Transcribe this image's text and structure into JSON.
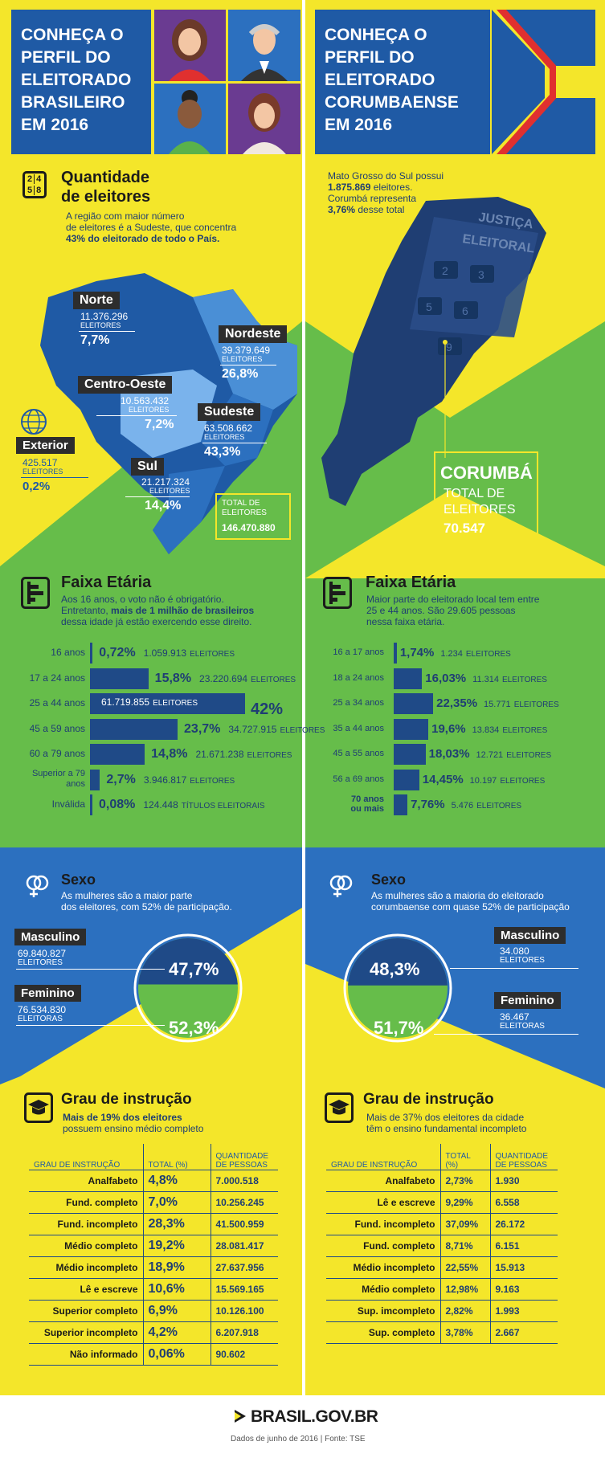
{
  "colors": {
    "yellow": "#f4e62a",
    "green": "#66bd4a",
    "blue": "#2c70bf",
    "navy": "#1f3e73",
    "dark": "#2d2d2d"
  },
  "left": {
    "title": "CONHEÇA O PERFIL DO ELEITORADO BRASILEIRO EM 2016",
    "quantity": {
      "title1": "Quantidade",
      "title2": "de eleitores",
      "desc1": "A região com maior número",
      "desc2": "de eleitores é a Sudeste, que concentra",
      "desc3": "43% do eleitorado de todo o País.",
      "regions": [
        {
          "name": "Norte",
          "voters": "11.376.296",
          "unit": "ELEITORES",
          "pct": "7,7%"
        },
        {
          "name": "Nordeste",
          "voters": "39.379.649",
          "unit": "ELEITORES",
          "pct": "26,8%"
        },
        {
          "name": "Centro-Oeste",
          "voters": "10.563.432",
          "unit": "ELEITORES",
          "pct": "7,2%"
        },
        {
          "name": "Sudeste",
          "voters": "63.508.662",
          "unit": "ELEITORES",
          "pct": "43,3%"
        },
        {
          "name": "Sul",
          "voters": "21.217.324",
          "unit": "ELEITORES",
          "pct": "14,4%"
        },
        {
          "name": "Exterior",
          "voters": "425.517",
          "unit": "ELEITORES",
          "pct": "0,2%"
        }
      ],
      "total_label1": "TOTAL DE",
      "total_label2": "ELEITORES",
      "total": "146.470.880"
    },
    "age": {
      "title": "Faixa Etária",
      "desc1": "Aos 16 anos, o voto não é obrigatório.",
      "desc2a": "Entretanto, ",
      "desc2b": "mais de 1 milhão de brasileiros",
      "desc3": "dessa idade já estão exercendo esse direito.",
      "big_pct": "42%"
    },
    "sex": {
      "title": "Sexo",
      "desc1": "As mulheres são a maior parte",
      "desc2": "dos eleitores, com 52% de participação.",
      "male_label": "Masculino",
      "male_count": "69.840.827",
      "male_unit": "ELEITORES",
      "male_pct": "47,7%",
      "female_label": "Feminino",
      "female_count": "76.534.830",
      "female_unit": "ELEITORAS",
      "female_pct": "52,3%"
    },
    "edu": {
      "title": "Grau de instrução",
      "desc1": "Mais de 19% dos eleitores",
      "desc2": "possuem ensino médio completo",
      "h1": "GRAU DE INSTRUÇÃO",
      "h2": "TOTAL (%)",
      "h3a": "QUANTIDADE",
      "h3b": "DE PESSOAS",
      "rows": [
        {
          "label": "Analfabeto",
          "pct": "4,8%",
          "qty": "7.000.518"
        },
        {
          "label": "Fund. completo",
          "pct": "7,0%",
          "qty": "10.256.245"
        },
        {
          "label": "Fund. incompleto",
          "pct": "28,3%",
          "qty": "41.500.959"
        },
        {
          "label": "Médio completo",
          "pct": "19,2%",
          "qty": "28.081.417"
        },
        {
          "label": "Médio incompleto",
          "pct": "18,9%",
          "qty": "27.637.956"
        },
        {
          "label": "Lê e escreve",
          "pct": "10,6%",
          "qty": "15.569.165"
        },
        {
          "label": "Superior completo",
          "pct": "6,9%",
          "qty": "10.126.100"
        },
        {
          "label": "Superior incompleto",
          "pct": "4,2%",
          "qty": "6.207.918"
        },
        {
          "label": "Não informado",
          "pct": "0,06%",
          "qty": "90.602"
        }
      ]
    }
  },
  "right": {
    "title": "CONHEÇA O PERFIL DO ELEITORADO CORUMBAENSE EM 2016",
    "intro1": "Mato Grosso do Sul possui",
    "intro2": "1.875.869",
    "intro2b": " eleitores.",
    "intro3": "Corumbá representa",
    "intro4": "3,76%",
    "intro4b": " desse total",
    "machine1": "JUSTIÇA",
    "machine2": "ELEITORAL",
    "city": "CORUMBÁ",
    "total1": "TOTAL DE",
    "total2": "ELEITORES",
    "total": "70.547",
    "age": {
      "title": "Faixa Etária",
      "desc1": "Maior parte do eleitorado local tem entre",
      "desc2": "25 e 44 anos. São 29.605 pessoas",
      "desc3": "nessa faixa etária."
    },
    "sex": {
      "title": "Sexo",
      "desc1": "As mulheres são a maioria do eleitorado",
      "desc2": "corumbaense com quase 52% de participação",
      "male_label": "Masculino",
      "male_count": "34.080",
      "male_unit": "ELEITORES",
      "male_pct": "48,3%",
      "female_label": "Feminino",
      "female_count": "36.467",
      "female_unit": "ELEITORAS",
      "female_pct": "51,7%"
    },
    "edu": {
      "title": "Grau de instrução",
      "desc1": "Mais de 37% dos eleitores da cidade",
      "desc2": "têm o ensino fundamental incompleto",
      "h1": "GRAU DE INSTRUÇÃO",
      "h2": "TOTAL (%)",
      "h3a": "QUANTIDADE",
      "h3b": "DE PESSOAS",
      "rows": [
        {
          "label": "Analfabeto",
          "pct": "2,73%",
          "qty": "1.930"
        },
        {
          "label": "Lê e escreve",
          "pct": "9,29%",
          "qty": "6.558"
        },
        {
          "label": "Fund. incompleto",
          "pct": "37,09%",
          "qty": "26.172"
        },
        {
          "label": "Fund. completo",
          "pct": "8,71%",
          "qty": "6.151"
        },
        {
          "label": "Médio incompleto",
          "pct": "22,55%",
          "qty": "15.913"
        },
        {
          "label": "Médio completo",
          "pct": "12,98%",
          "qty": "9.163"
        },
        {
          "label": "Sup. imcompleto",
          "pct": "2,82%",
          "qty": "1.993"
        },
        {
          "label": "Sup. completo",
          "pct": "3,78%",
          "qty": "2.667"
        }
      ]
    }
  },
  "footer": {
    "brand": "BRASIL.GOV.BR",
    "source": "Dados de junho de 2016  |  Fonte: TSE"
  },
  "chart_data": [
    {
      "type": "bar",
      "title": "Faixa Etária",
      "categories": [
        "16 anos",
        "17 a 24 anos",
        "25 a 44 anos",
        "45 a 59 anos",
        "60 a 79 anos",
        "Superior a 79 anos",
        "Inválida"
      ],
      "series": [
        {
          "values": [
            0.72,
            15.8,
            42,
            23.7,
            14.8,
            2.7,
            0.08
          ]
        }
      ],
      "pct_labels": [
        "0,72%",
        "15,8%",
        "42%",
        "23,7%",
        "14,8%",
        "2,7%",
        "0,08%"
      ],
      "counts": [
        "1.059.913",
        "23.220.694",
        "61.719.855",
        "34.727.915",
        "21.671.238",
        "3.946.817",
        "124.448"
      ],
      "units": [
        "ELEITORES",
        "ELEITORES",
        "ELEITORES",
        "ELEITORES",
        "ELEITORES",
        "ELEITORES",
        "TÍTULOS ELEITORAIS"
      ]
    },
    {
      "type": "bar",
      "title": "Faixa Etária",
      "categories": [
        "16 a 17 anos",
        "18 a 24 anos",
        "25 a 34 anos",
        "35 a 44 anos",
        "45 a 55 anos",
        "56 a 69 anos",
        "70 anos ou mais"
      ],
      "series": [
        {
          "values": [
            1.74,
            16.03,
            22.35,
            19.6,
            18.03,
            14.45,
            7.76
          ]
        }
      ],
      "pct_labels": [
        "1,74%",
        "16,03%",
        "22,35%",
        "19,6%",
        "18,03%",
        "14,45%",
        "7,76%"
      ],
      "counts": [
        "1.234",
        "11.314",
        "15.771",
        "13.834",
        "12.721",
        "10.197",
        "5.476"
      ],
      "units": [
        "ELEITORES",
        "ELEITORES",
        "ELEITORES",
        "ELEITORES",
        "ELEITORES",
        "ELEITORES",
        "ELEITORES"
      ]
    },
    {
      "type": "pie",
      "title": "Sexo",
      "categories": [
        "Masculino",
        "Feminino"
      ],
      "values": [
        47.7,
        52.3
      ]
    },
    {
      "type": "pie",
      "title": "Sexo",
      "categories": [
        "Masculino",
        "Feminino"
      ],
      "values": [
        48.3,
        51.7
      ]
    }
  ]
}
